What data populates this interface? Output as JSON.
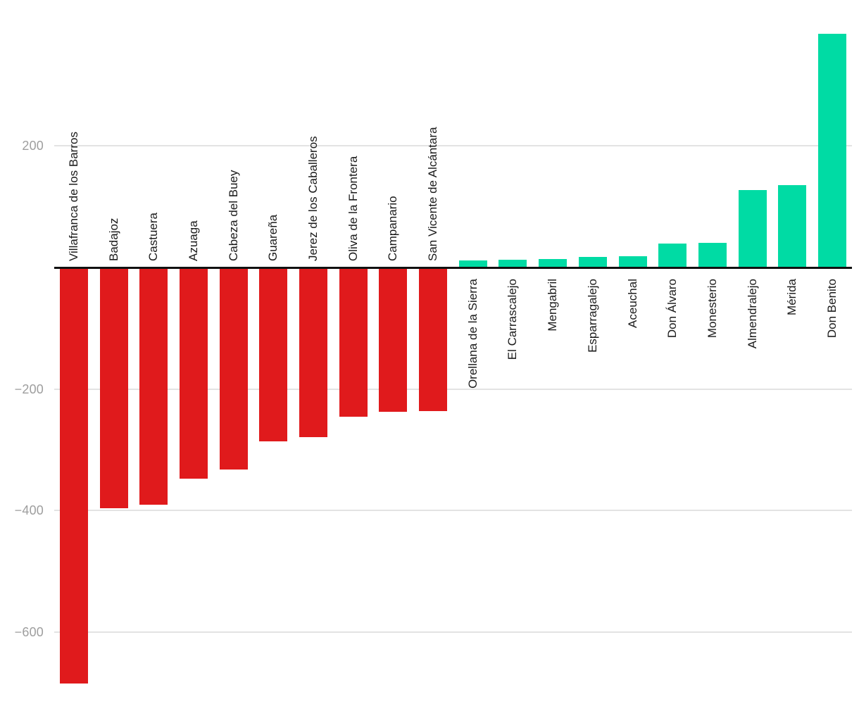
{
  "chart_data": {
    "type": "bar",
    "title": "",
    "xlabel": "",
    "ylabel": "",
    "legend_position": "none",
    "grid": true,
    "orientation": "vertical-diverging",
    "categories": [
      "Villafranca de los Barros",
      "Badajoz",
      "Castuera",
      "Azuaga",
      "Cabeza del Buey",
      "Guareña",
      "Jerez de los Caballeros",
      "Oliva de la Frontera",
      "Campanario",
      "San Vicente de Alcántara",
      "Orellana de la Sierra",
      "El Carrascalejo",
      "Mengabril",
      "Esparragalejo",
      "Aceuchal",
      "Don Álvaro",
      "Monesterio",
      "Almendralejo",
      "Mérida",
      "Don Benito"
    ],
    "values": [
      -685,
      -396,
      -390,
      -348,
      -333,
      -286,
      -279,
      -246,
      -237,
      -236,
      12,
      13,
      14,
      17,
      19,
      39,
      40,
      127,
      136,
      384
    ],
    "y_ticks": [
      {
        "value": 200,
        "label": "200"
      },
      {
        "value": -200,
        "label": "−200"
      },
      {
        "value": -400,
        "label": "−400"
      },
      {
        "value": -600,
        "label": "−600"
      }
    ],
    "ylim": [
      -740,
      430
    ],
    "colors": {
      "bar_negative": "#e01a1c",
      "bar_positive": "#00dba4",
      "gridline": "#e3e3e3",
      "axis_line": "#111111",
      "y_tick_label": "#9e9e9e",
      "category_label": "#1a1a1a",
      "background": "#ffffff"
    }
  }
}
